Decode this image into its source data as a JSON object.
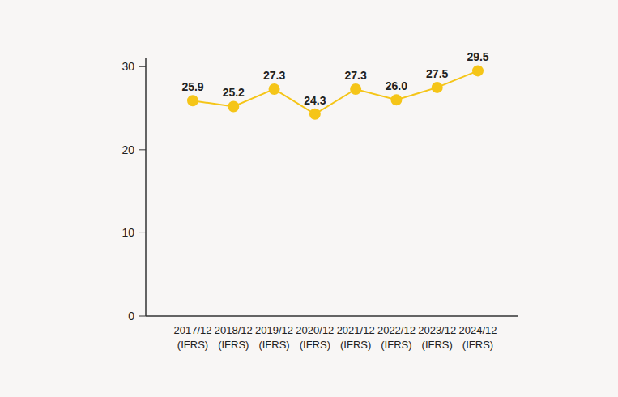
{
  "chart_data": {
    "type": "line",
    "categories": [
      "2017/12\n(IFRS)",
      "2018/12\n(IFRS)",
      "2019/12\n(IFRS)",
      "2020/12\n(IFRS)",
      "2021/12\n(IFRS)",
      "2022/12\n(IFRS)",
      "2023/12\n(IFRS)",
      "2024/12\n(IFRS)"
    ],
    "values": [
      25.9,
      25.2,
      27.3,
      24.3,
      27.3,
      26.0,
      27.5,
      29.5
    ],
    "value_labels": [
      "25.9",
      "25.2",
      "27.3",
      "24.3",
      "27.3",
      "26.0",
      "27.5",
      "29.5"
    ],
    "data_labels": true,
    "color": "#f5c518",
    "marker": "circle",
    "ylim": [
      0,
      31
    ],
    "yticks": [
      0,
      10,
      20,
      30
    ],
    "grid": false
  }
}
